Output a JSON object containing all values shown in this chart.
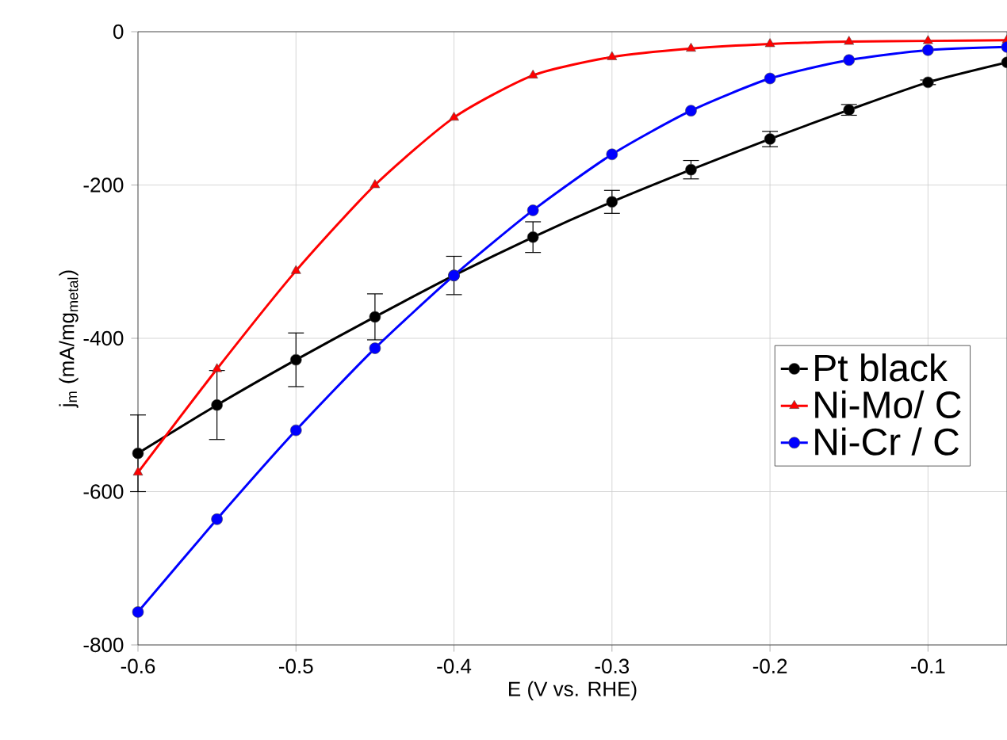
{
  "chart_data": {
    "type": "line",
    "xlabel": "E (V vs. RHE)",
    "ylabel": "j$_{m}$ (mA/mg$_{metal}$)",
    "x": [
      -0.6,
      -0.55,
      -0.5,
      -0.45,
      -0.4,
      -0.35,
      -0.3,
      -0.25,
      -0.2,
      -0.15,
      -0.1,
      -0.05
    ],
    "series": [
      {
        "name": "Pt black",
        "color": "#000000",
        "marker": "circle",
        "values": [
          -550,
          -487,
          -428,
          -372,
          -318,
          -268,
          -222,
          -180,
          -140,
          -102,
          -66,
          -40
        ],
        "errors": [
          50,
          45,
          35,
          30,
          25,
          20,
          15,
          12,
          10,
          7,
          3,
          null
        ]
      },
      {
        "name": "Ni-Mo/ C",
        "color": "#ff0000",
        "marker": "triangle",
        "values": [
          -575,
          -440,
          -312,
          -200,
          -112,
          -57,
          -33,
          -22,
          -16,
          -13,
          -12,
          -11
        ]
      },
      {
        "name": "Ni-Cr / C",
        "color": "#0000ff",
        "marker": "circle",
        "values": [
          -757,
          -636,
          -520,
          -413,
          -318,
          -233,
          -160,
          -103,
          -61,
          -37,
          -24,
          -20
        ]
      }
    ],
    "xlim": [
      -0.6,
      -0.05
    ],
    "ylim": [
      -800,
      0
    ],
    "xticks": [
      -0.6,
      -0.5,
      -0.4,
      -0.3,
      -0.2,
      -0.1
    ],
    "yticks": [
      -800,
      -600,
      -400,
      -200,
      0
    ],
    "grid": true,
    "legend": "right",
    "line_style": "solid"
  }
}
